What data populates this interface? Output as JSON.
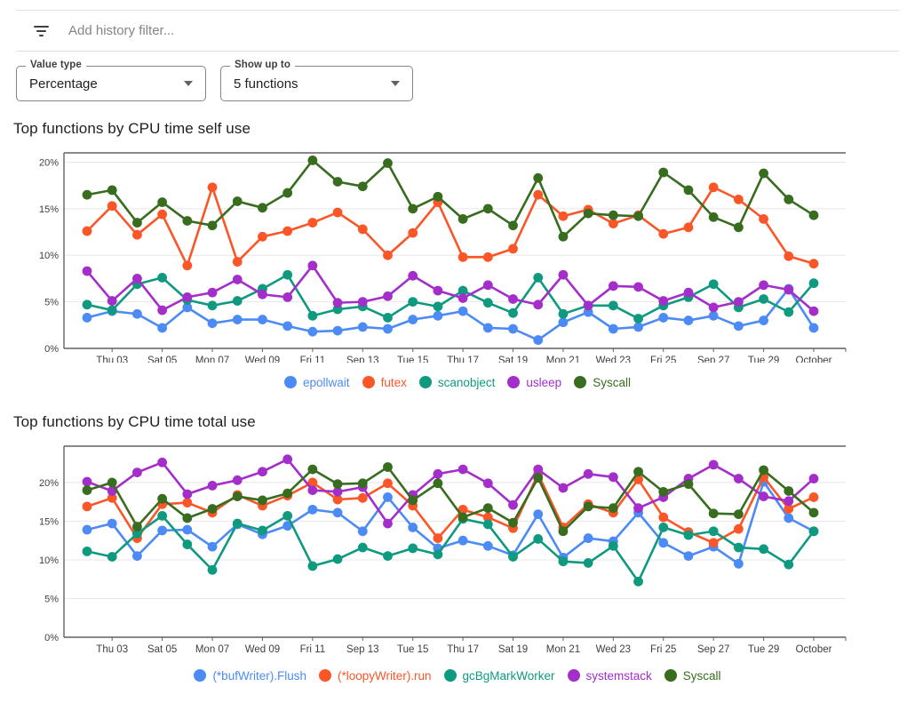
{
  "filter_bar": {
    "placeholder": "Add history filter...",
    "icon": "filter-list-icon"
  },
  "controls": [
    {
      "label": "Value type",
      "value": "Percentage"
    },
    {
      "label": "Show up to",
      "value": "5 functions"
    }
  ],
  "palette": {
    "blue": "#4C8BF5",
    "orange": "#FA5628",
    "teal": "#0F9A80",
    "purple": "#A32EC9",
    "green": "#386C1F",
    "grid": "#e8e8e8",
    "axis": "#616161",
    "axis_text": "#3c4043"
  },
  "chart_data": [
    {
      "type": "line",
      "title": "Top functions by CPU time self use",
      "ylabel": "",
      "xlabel": "",
      "ylim": [
        0,
        21
      ],
      "ytick_values": [
        0,
        5,
        10,
        15,
        20
      ],
      "ytick_labels": [
        "0%",
        "5%",
        "10%",
        "15%",
        "20%"
      ],
      "x_labels": [
        "Thu 03",
        "Sat 05",
        "Mon 07",
        "Wed 09",
        "Fri 11",
        "Sep 13",
        "Tue 15",
        "Thu 17",
        "Sat 19",
        "Mon 21",
        "Wed 23",
        "Fri 25",
        "Sep 27",
        "Tue 29",
        "October"
      ],
      "legend_position": "bottom",
      "grid": true,
      "series": [
        {
          "name": "epollwait",
          "color": "#4C8BF5",
          "values": [
            3.3,
            4.0,
            3.7,
            2.2,
            4.4,
            2.7,
            3.1,
            3.1,
            2.4,
            1.8,
            1.9,
            2.3,
            2.1,
            3.1,
            3.5,
            4.0,
            2.2,
            2.1,
            0.9,
            2.8,
            3.9,
            2.1,
            2.3,
            3.3,
            3.0,
            3.5,
            2.4,
            3.0,
            6.4,
            2.2
          ]
        },
        {
          "name": "futex",
          "color": "#FA5628",
          "values": [
            12.6,
            15.3,
            12.2,
            14.4,
            8.9,
            17.3,
            9.3,
            12.0,
            12.6,
            13.5,
            14.6,
            12.8,
            10.0,
            12.4,
            15.7,
            9.8,
            9.8,
            10.7,
            16.5,
            14.2,
            14.9,
            13.4,
            14.3,
            12.3,
            13.0,
            17.3,
            16.0,
            13.9,
            9.9,
            9.1
          ]
        },
        {
          "name": "scanobject",
          "color": "#0F9A80",
          "values": [
            4.7,
            4.1,
            6.9,
            7.6,
            5.2,
            4.6,
            5.1,
            6.4,
            7.9,
            3.5,
            4.2,
            4.5,
            3.3,
            5.0,
            4.5,
            6.2,
            4.9,
            3.8,
            7.6,
            3.7,
            4.6,
            4.6,
            3.2,
            4.6,
            5.5,
            6.9,
            4.4,
            5.3,
            3.9,
            7.0
          ]
        },
        {
          "name": "usleep",
          "color": "#A32EC9",
          "values": [
            8.3,
            5.1,
            7.5,
            4.1,
            5.5,
            6.0,
            7.4,
            5.8,
            5.5,
            8.9,
            4.9,
            5.0,
            5.6,
            7.8,
            6.2,
            5.4,
            6.8,
            5.3,
            4.7,
            7.9,
            4.6,
            6.7,
            6.6,
            5.1,
            6.0,
            4.4,
            5.0,
            6.8,
            6.3,
            4.0
          ]
        },
        {
          "name": "Syscall",
          "color": "#386C1F",
          "values": [
            16.5,
            17.0,
            13.5,
            15.7,
            13.7,
            13.2,
            15.8,
            15.1,
            16.7,
            20.2,
            17.9,
            17.4,
            19.9,
            15.0,
            16.3,
            13.9,
            15.0,
            13.2,
            18.3,
            12.0,
            14.5,
            14.3,
            14.2,
            18.9,
            17.0,
            14.1,
            13.0,
            18.8,
            16.0,
            14.3
          ]
        }
      ]
    },
    {
      "type": "line",
      "title": "Top functions by CPU time total use",
      "ylabel": "",
      "xlabel": "",
      "ylim": [
        0,
        24.7
      ],
      "ytick_values": [
        0,
        5,
        10,
        15,
        20
      ],
      "ytick_labels": [
        "0%",
        "5%",
        "10%",
        "15%",
        "20%"
      ],
      "x_labels": [
        "Thu 03",
        "Sat 05",
        "Mon 07",
        "Wed 09",
        "Fri 11",
        "Sep 13",
        "Tue 15",
        "Thu 17",
        "Sat 19",
        "Mon 21",
        "Wed 23",
        "Fri 25",
        "Sep 27",
        "Tue 29",
        "October"
      ],
      "legend_position": "bottom",
      "grid": true,
      "series": [
        {
          "name": "(*bufWriter).Flush",
          "color": "#4C8BF5",
          "values": [
            13.9,
            14.7,
            10.5,
            13.8,
            13.9,
            11.7,
            14.6,
            13.3,
            14.4,
            16.5,
            16.1,
            13.7,
            18.1,
            14.2,
            11.5,
            12.5,
            11.8,
            10.6,
            15.9,
            10.3,
            12.8,
            12.4,
            16.1,
            12.2,
            10.5,
            11.7,
            9.5,
            20.1,
            15.4,
            13.7
          ]
        },
        {
          "name": "(*loopyWriter).run",
          "color": "#FA5628",
          "values": [
            16.9,
            18.0,
            12.8,
            17.2,
            17.4,
            16.1,
            18.4,
            17.0,
            18.3,
            20.0,
            17.8,
            18.0,
            19.9,
            17.0,
            12.8,
            16.5,
            15.5,
            14.1,
            21.1,
            14.2,
            17.2,
            16.1,
            20.4,
            15.5,
            13.6,
            12.2,
            14.0,
            20.7,
            16.6,
            18.1
          ]
        },
        {
          "name": "gcBgMarkWorker",
          "color": "#0F9A80",
          "values": [
            11.1,
            10.4,
            13.4,
            15.7,
            12.0,
            8.7,
            14.7,
            13.8,
            15.7,
            9.2,
            10.1,
            11.6,
            10.5,
            11.5,
            10.7,
            15.3,
            14.6,
            10.4,
            12.7,
            9.8,
            9.6,
            11.8,
            7.2,
            14.2,
            13.2,
            13.7,
            11.6,
            11.4,
            9.4,
            13.7
          ]
        },
        {
          "name": "systemstack",
          "color": "#A32EC9",
          "values": [
            20.1,
            18.9,
            21.3,
            22.6,
            18.5,
            19.6,
            20.3,
            21.4,
            23.0,
            19.0,
            18.8,
            19.4,
            14.7,
            18.4,
            21.1,
            21.7,
            19.9,
            17.1,
            21.7,
            19.3,
            21.1,
            20.7,
            16.7,
            18.1,
            20.5,
            22.3,
            20.5,
            18.2,
            17.6,
            20.5
          ]
        },
        {
          "name": "Syscall",
          "color": "#386C1F",
          "values": [
            19.0,
            20.0,
            14.3,
            17.9,
            15.4,
            16.6,
            18.2,
            17.7,
            18.6,
            21.7,
            19.8,
            19.9,
            22.0,
            17.7,
            19.9,
            15.5,
            16.7,
            14.8,
            20.6,
            13.7,
            16.9,
            16.7,
            21.4,
            18.8,
            19.8,
            16.0,
            15.9,
            21.6,
            18.9,
            16.1
          ]
        }
      ]
    }
  ]
}
